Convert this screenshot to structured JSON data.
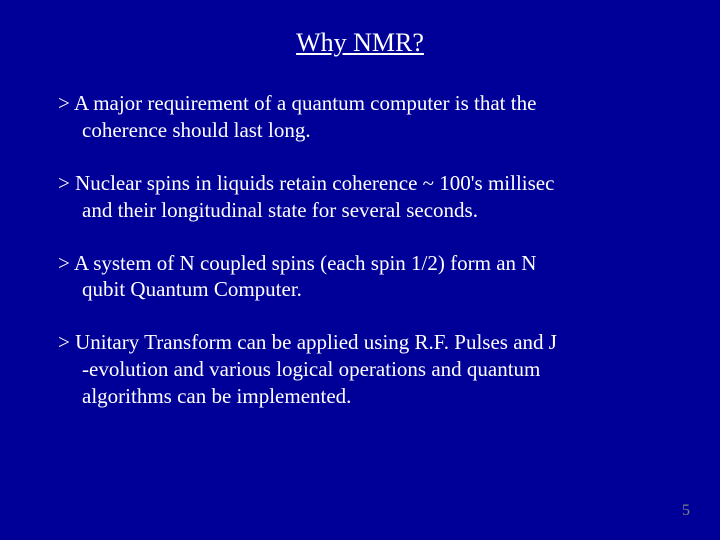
{
  "background_color": "#000099",
  "text_color": "#ffffff",
  "page_number_color": "#808080",
  "font_family": "Times New Roman",
  "title": {
    "text": "Why NMR?",
    "fontsize": 26,
    "underline": true
  },
  "bullets": [
    {
      "prefix": ">  ",
      "line1": "A major requirement of a quantum computer is that the",
      "line2": "coherence should last long."
    },
    {
      "prefix": "> ",
      "line1": "Nuclear spins in liquids retain coherence   ~ 100's millisec",
      "line2": "and their longitudinal state for several seconds."
    },
    {
      "prefix": "> ",
      "line1": "A system of N coupled spins (each spin 1/2)  form an N",
      "line2": "qubit Quantum Computer."
    },
    {
      "prefix": ">  ",
      "line1": "Unitary Transform can be applied using R.F. Pulses    and J",
      "line2": "-evolution and various logical operations and quantum",
      "line3": "algorithms can be implemented."
    }
  ],
  "body_fontsize": 21,
  "page_number": "5",
  "page_number_fontsize": 16
}
